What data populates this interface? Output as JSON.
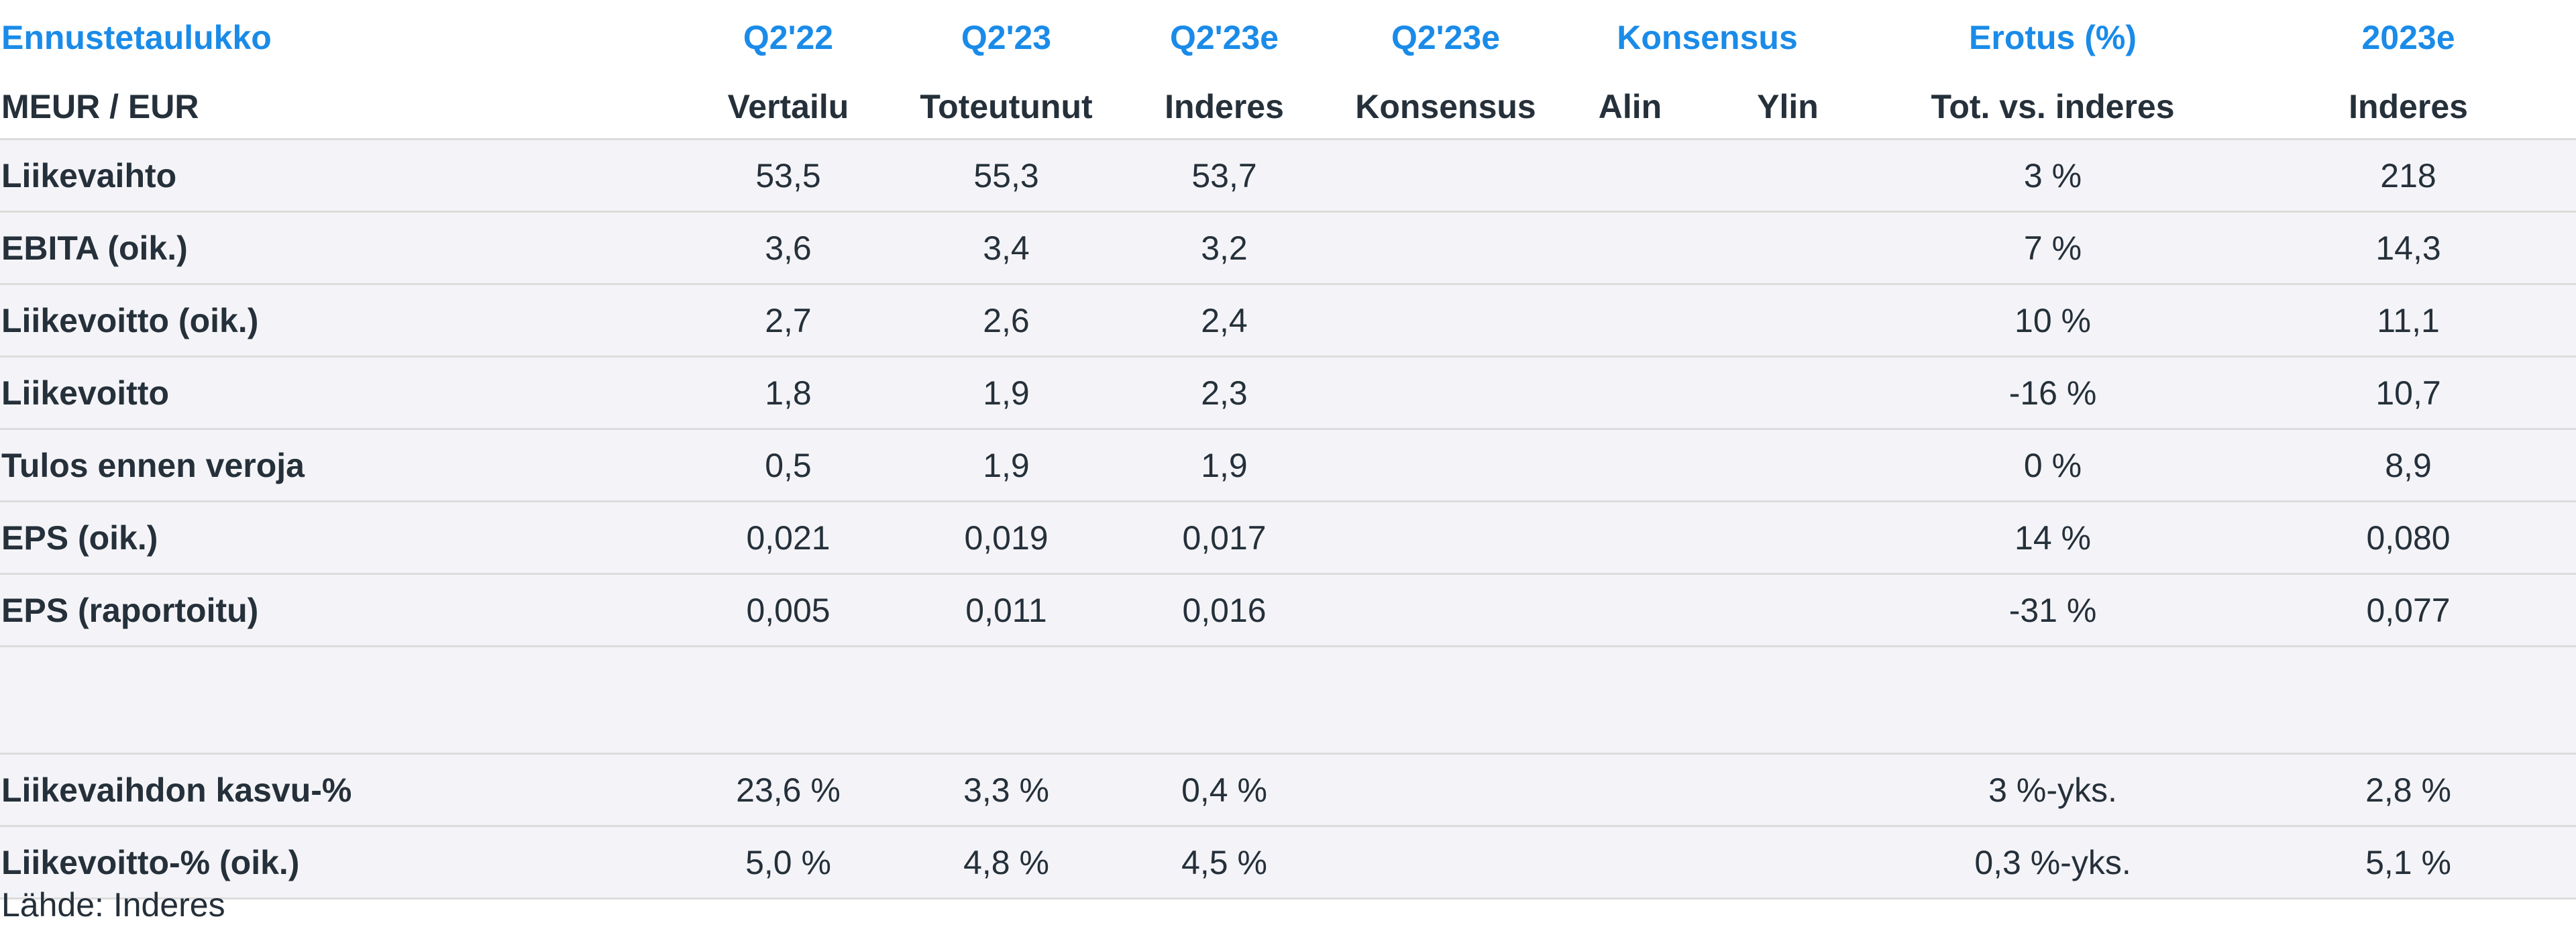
{
  "header": {
    "row1": [
      "Ennustetaulukko",
      "Q2'22",
      "Q2'23",
      "Q2'23e",
      "Q2'23e",
      "Konsensus",
      "Erotus (%)",
      "2023e"
    ],
    "row2": [
      "MEUR / EUR",
      "Vertailu",
      "Toteutunut",
      "Inderes",
      "Konsensus",
      "Alin",
      "Ylin",
      "Tot. vs. inderes",
      "Inderes"
    ]
  },
  "rows": [
    {
      "label": "Liikevaihto",
      "vertailu": "53,5",
      "toteutunut": "55,3",
      "inderes": "53,7",
      "konsensus": "",
      "alin": "",
      "ylin": "",
      "erotus": "3 %",
      "y2023": "218"
    },
    {
      "label": "EBITA (oik.)",
      "vertailu": "3,6",
      "toteutunut": "3,4",
      "inderes": "3,2",
      "konsensus": "",
      "alin": "",
      "ylin": "",
      "erotus": "7 %",
      "y2023": "14,3"
    },
    {
      "label": "Liikevoitto (oik.)",
      "vertailu": "2,7",
      "toteutunut": "2,6",
      "inderes": "2,4",
      "konsensus": "",
      "alin": "",
      "ylin": "",
      "erotus": "10 %",
      "y2023": "11,1"
    },
    {
      "label": "Liikevoitto",
      "vertailu": "1,8",
      "toteutunut": "1,9",
      "inderes": "2,3",
      "konsensus": "",
      "alin": "",
      "ylin": "",
      "erotus": "-16 %",
      "y2023": "10,7"
    },
    {
      "label": "Tulos ennen veroja",
      "vertailu": "0,5",
      "toteutunut": "1,9",
      "inderes": "1,9",
      "konsensus": "",
      "alin": "",
      "ylin": "",
      "erotus": "0 %",
      "y2023": "8,9"
    },
    {
      "label": "EPS (oik.)",
      "vertailu": "0,021",
      "toteutunut": "0,019",
      "inderes": "0,017",
      "konsensus": "",
      "alin": "",
      "ylin": "",
      "erotus": "14 %",
      "y2023": "0,080"
    },
    {
      "label": "EPS (raportoitu)",
      "vertailu": "0,005",
      "toteutunut": "0,011",
      "inderes": "0,016",
      "konsensus": "",
      "alin": "",
      "ylin": "",
      "erotus": "-31 %",
      "y2023": "0,077"
    }
  ],
  "growth_rows": [
    {
      "label": "Liikevaihdon kasvu-%",
      "vertailu": "23,6 %",
      "toteutunut": "3,3 %",
      "inderes": "0,4 %",
      "konsensus": "",
      "alin": "",
      "ylin": "",
      "erotus": "3 %-yks.",
      "y2023": "2,8 %"
    },
    {
      "label": "Liikevoitto-% (oik.)",
      "vertailu": "5,0 %",
      "toteutunut": "4,8 %",
      "inderes": "4,5 %",
      "konsensus": "",
      "alin": "",
      "ylin": "",
      "erotus": "0,3 %-yks.",
      "y2023": "5,1 %"
    }
  ],
  "source": "Lähde: Inderes",
  "colors": {
    "header_accent": "#1a8be8",
    "text": "#25303a",
    "row_background": "#f4f4f8",
    "divider": "#dcdcdc"
  }
}
